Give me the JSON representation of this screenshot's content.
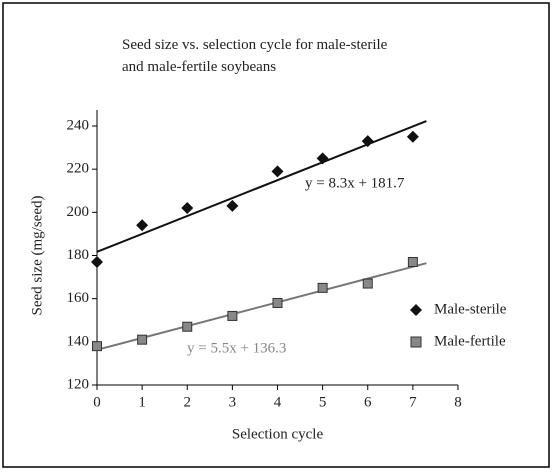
{
  "chart_data": {
    "type": "scatter",
    "title": "Seed size vs. selection cycle for male-sterile and male-fertile soybeans",
    "xlabel": "Selection cycle",
    "ylabel": "Seed size (mg/seed)",
    "x": [
      0,
      1,
      2,
      3,
      4,
      5,
      6,
      7
    ],
    "series": [
      {
        "name": "Male-sterile",
        "color": "#111111",
        "marker": "diamond",
        "values": [
          177,
          194,
          202,
          203,
          219,
          225,
          233,
          235
        ],
        "trendline": {
          "label": "y = 8.3x + 181.7",
          "slope": 8.3,
          "intercept": 181.7,
          "color": "#111111"
        }
      },
      {
        "name": "Male-fertile",
        "color": "#888888",
        "marker": "square",
        "values": [
          138,
          141,
          147,
          152,
          158,
          165,
          167,
          177
        ],
        "trendline": {
          "label": "y = 5.5x + 136.3",
          "slope": 5.5,
          "intercept": 136.3,
          "color": "#777777"
        }
      }
    ],
    "xlim": [
      0,
      8
    ],
    "xticks": [
      0,
      1,
      2,
      3,
      4,
      5,
      6,
      7,
      8
    ],
    "ylim": [
      120,
      240
    ],
    "yticks": [
      120,
      140,
      160,
      180,
      200,
      220,
      240
    ],
    "grid": false,
    "legend": "right"
  }
}
